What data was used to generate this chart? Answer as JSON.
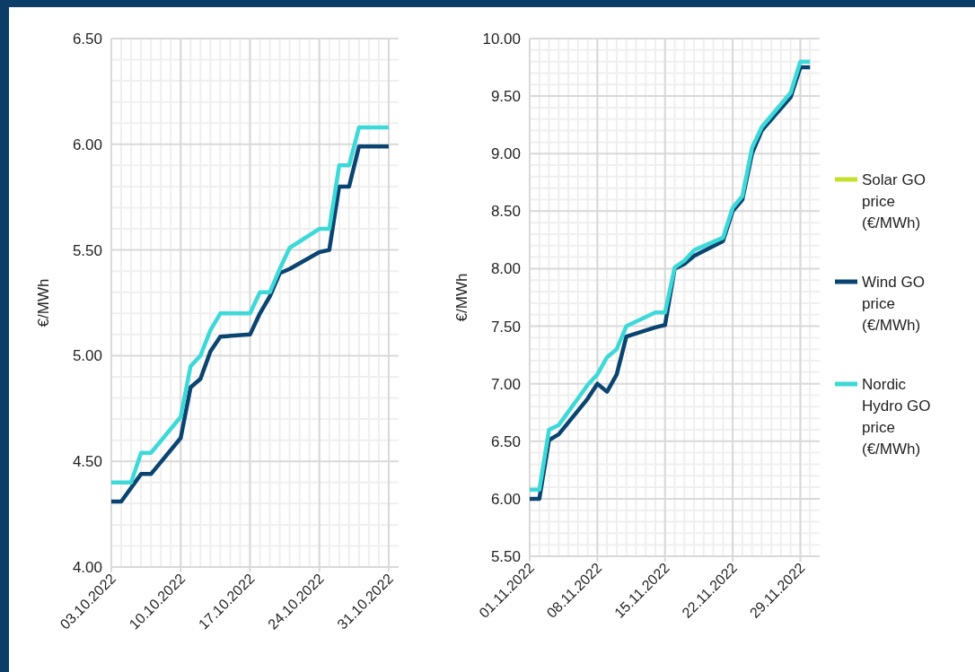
{
  "chart_data": [
    {
      "type": "line",
      "ylabel": "€/MWh",
      "xlim": [
        "2022-10-03",
        "2022-11-01"
      ],
      "xticks": [
        {
          "value": "2022-10-03",
          "label": "03.10.2022"
        },
        {
          "value": "2022-10-10",
          "label": "10.10.2022"
        },
        {
          "value": "2022-10-17",
          "label": "17.10.2022"
        },
        {
          "value": "2022-10-24",
          "label": "24.10.2022"
        },
        {
          "value": "2022-10-31",
          "label": "31.10.2022"
        }
      ],
      "ylim": [
        4,
        6.5
      ],
      "yticks": [
        {
          "value": 4,
          "label": "4.00"
        },
        {
          "value": 4.5,
          "label": "4.50"
        },
        {
          "value": 5,
          "label": "5.00"
        },
        {
          "value": 5.5,
          "label": "5.50"
        },
        {
          "value": 6,
          "label": "6.00"
        },
        {
          "value": 6.5,
          "label": "6.50"
        }
      ],
      "grid": true,
      "legend": false,
      "line_style": "solid",
      "marker": "none",
      "series": [
        {
          "color": "#c4e02a"
        },
        {
          "color": "#0a4470",
          "x": [
            "2022-10-03",
            "2022-10-04",
            "2022-10-06",
            "2022-10-07",
            "2022-10-10",
            "2022-10-11",
            "2022-10-12",
            "2022-10-13",
            "2022-10-14",
            "2022-10-17",
            "2022-10-18",
            "2022-10-19",
            "2022-10-20",
            "2022-10-21",
            "2022-10-24",
            "2022-10-25",
            "2022-10-26",
            "2022-10-27",
            "2022-10-28",
            "2022-10-31"
          ],
          "values": [
            4.31,
            4.31,
            4.44,
            4.44,
            4.61,
            4.85,
            4.89,
            5.02,
            5.09,
            5.1,
            5.2,
            5.28,
            5.39,
            5.41,
            5.49,
            5.5,
            5.8,
            5.8,
            5.99,
            5.99
          ]
        },
        {
          "color": "#3dd9d9",
          "x": [
            "2022-10-03",
            "2022-10-05",
            "2022-10-06",
            "2022-10-07",
            "2022-10-10",
            "2022-10-11",
            "2022-10-12",
            "2022-10-13",
            "2022-10-14",
            "2022-10-17",
            "2022-10-18",
            "2022-10-19",
            "2022-10-20",
            "2022-10-21",
            "2022-10-24",
            "2022-10-25",
            "2022-10-26",
            "2022-10-27",
            "2022-10-28",
            "2022-10-31"
          ],
          "values": [
            4.4,
            4.4,
            4.54,
            4.54,
            4.71,
            4.95,
            5.0,
            5.12,
            5.2,
            5.2,
            5.3,
            5.3,
            5.41,
            5.51,
            5.6,
            5.6,
            5.9,
            5.9,
            6.08,
            6.08
          ]
        }
      ]
    },
    {
      "type": "line",
      "ylabel": "€/MWh",
      "xlim": [
        "2022-11-01",
        "2022-12-01"
      ],
      "xticks": [
        {
          "value": "2022-11-01",
          "label": "01.11.2022"
        },
        {
          "value": "2022-11-08",
          "label": "08.11.2022"
        },
        {
          "value": "2022-11-15",
          "label": "15.11.2022"
        },
        {
          "value": "2022-11-22",
          "label": "22.11.2022"
        },
        {
          "value": "2022-11-29",
          "label": "29.11.2022"
        }
      ],
      "ylim": [
        5.5,
        10
      ],
      "yticks": [
        {
          "value": 5.5,
          "label": "5.50"
        },
        {
          "value": 6,
          "label": "6.00"
        },
        {
          "value": 6.5,
          "label": "6.50"
        },
        {
          "value": 7,
          "label": "7.00"
        },
        {
          "value": 7.5,
          "label": "7.50"
        },
        {
          "value": 8,
          "label": "8.00"
        },
        {
          "value": 8.5,
          "label": "8.50"
        },
        {
          "value": 9,
          "label": "9.00"
        },
        {
          "value": 9.5,
          "label": "9.50"
        },
        {
          "value": 10,
          "label": "10.00"
        }
      ],
      "grid": true,
      "legend": "right",
      "line_style": "solid",
      "marker": "none",
      "series": [
        {
          "name": "Solar GO price (€/MWh)",
          "color": "#c4e02a"
        },
        {
          "name": "Wind GO price (€/MWh)",
          "color": "#0a4470",
          "x": [
            "2022-11-01",
            "2022-11-02",
            "2022-11-03",
            "2022-11-04",
            "2022-11-07",
            "2022-11-08",
            "2022-11-09",
            "2022-11-10",
            "2022-11-11",
            "2022-11-14",
            "2022-11-15",
            "2022-11-16",
            "2022-11-17",
            "2022-11-18",
            "2022-11-21",
            "2022-11-22",
            "2022-11-23",
            "2022-11-24",
            "2022-11-25",
            "2022-11-28",
            "2022-11-29",
            "2022-11-30"
          ],
          "values": [
            6.0,
            6.0,
            6.51,
            6.56,
            6.87,
            7.0,
            6.93,
            7.08,
            7.41,
            7.49,
            7.51,
            8.0,
            8.04,
            8.11,
            8.24,
            8.5,
            8.6,
            9.0,
            9.2,
            9.49,
            9.75,
            9.75
          ]
        },
        {
          "name": "Nordic Hydro GO price (€/MWh)",
          "color": "#3dd9d9",
          "x": [
            "2022-11-01",
            "2022-11-02",
            "2022-11-03",
            "2022-11-04",
            "2022-11-07",
            "2022-11-08",
            "2022-11-09",
            "2022-11-10",
            "2022-11-11",
            "2022-11-14",
            "2022-11-15",
            "2022-11-16",
            "2022-11-17",
            "2022-11-18",
            "2022-11-21",
            "2022-11-22",
            "2022-11-23",
            "2022-11-24",
            "2022-11-25",
            "2022-11-28",
            "2022-11-29",
            "2022-11-30"
          ],
          "values": [
            6.08,
            6.08,
            6.6,
            6.64,
            6.99,
            7.08,
            7.23,
            7.3,
            7.5,
            7.62,
            7.62,
            8.01,
            8.07,
            8.16,
            8.27,
            8.53,
            8.63,
            9.05,
            9.23,
            9.53,
            9.8,
            9.8
          ]
        }
      ]
    }
  ]
}
